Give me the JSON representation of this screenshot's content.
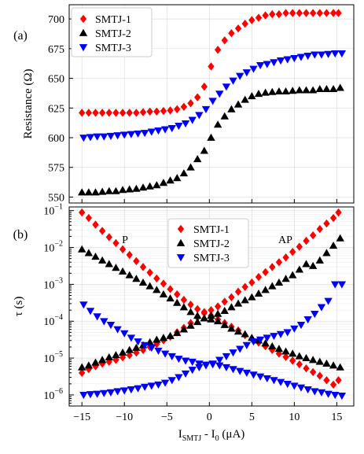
{
  "chart_data": [
    {
      "panel_label": "(a)",
      "type": "scatter",
      "ylabel": "Resistance (Ω)",
      "xlim": [
        -16.5,
        17
      ],
      "ylim": [
        545,
        712
      ],
      "yticks": [
        550,
        575,
        600,
        625,
        650,
        675,
        700
      ],
      "x_tick_labels": [],
      "legend_position": "top-left",
      "grid": true,
      "series": [
        {
          "name": "SMTJ-1",
          "marker": "diamond",
          "color": "#ff0000",
          "x": [
            -15,
            -14.2,
            -13.4,
            -12.6,
            -11.8,
            -11,
            -10.2,
            -9.4,
            -8.6,
            -7.8,
            -7,
            -6.2,
            -5.4,
            -4.6,
            -3.8,
            -3,
            -2.2,
            -1.4,
            -0.6,
            0.2,
            1,
            1.8,
            2.6,
            3.4,
            4.2,
            5,
            5.8,
            6.6,
            7.4,
            8.2,
            9,
            9.8,
            10.6,
            11.4,
            12.2,
            13,
            13.8,
            14.6,
            15.2
          ],
          "y": [
            621,
            621,
            621,
            621,
            621,
            621,
            621,
            621,
            621,
            621.5,
            622,
            622,
            622.5,
            623,
            624,
            626,
            629,
            634,
            643,
            660,
            674,
            682,
            688,
            692,
            696,
            699,
            701,
            703,
            704,
            704,
            705,
            705,
            705,
            705,
            705,
            705,
            705,
            705,
            705
          ]
        },
        {
          "name": "SMTJ-2",
          "marker": "triangle-up",
          "color": "#000000",
          "x": [
            -15,
            -14.2,
            -13.4,
            -12.6,
            -11.8,
            -11,
            -10.2,
            -9.4,
            -8.6,
            -7.8,
            -7,
            -6.2,
            -5.4,
            -4.6,
            -3.8,
            -3,
            -2.2,
            -1.4,
            -0.6,
            0.2,
            1,
            1.8,
            2.6,
            3.4,
            4.2,
            5,
            5.8,
            6.6,
            7.4,
            8.2,
            9,
            9.8,
            10.6,
            11.4,
            12.2,
            13,
            13.8,
            14.6,
            15.4
          ],
          "y": [
            554,
            554,
            554,
            554.5,
            555,
            555,
            556,
            556.5,
            557,
            558,
            559,
            560,
            562,
            564,
            566,
            570,
            575,
            582,
            589,
            600,
            611,
            618,
            624,
            628,
            632,
            635,
            637,
            638,
            638.5,
            639,
            639,
            639.5,
            640,
            640,
            640,
            641,
            641,
            641,
            642
          ]
        },
        {
          "name": "SMTJ-3",
          "marker": "triangle-down",
          "color": "#0000ff",
          "x": [
            -14.8,
            -14,
            -13.2,
            -12.4,
            -11.6,
            -10.8,
            -10,
            -9.2,
            -8.4,
            -7.6,
            -6.8,
            -6,
            -5.2,
            -4.4,
            -3.6,
            -2.8,
            -2,
            -1.2,
            -0.4,
            0.4,
            1.2,
            2,
            2.8,
            3.6,
            4.4,
            5.2,
            6,
            6.8,
            7.6,
            8.4,
            9.2,
            10,
            10.8,
            11.6,
            12.4,
            13.2,
            14,
            14.8,
            15.6
          ],
          "y": [
            600,
            600.5,
            601,
            601,
            601.5,
            602,
            602.5,
            603,
            603.5,
            604,
            605,
            606,
            607,
            608,
            610,
            612,
            615,
            619,
            624,
            631,
            637,
            643,
            648,
            652,
            655,
            658,
            661,
            662,
            663.5,
            665,
            666,
            667,
            668,
            669,
            670,
            670,
            670.5,
            671,
            671
          ]
        }
      ]
    },
    {
      "panel_label": "(b)",
      "type": "scatter",
      "xlabel_main": "I",
      "xlabel_sub1": "SMTJ",
      "xlabel_mid": " - I",
      "xlabel_sub2": "0",
      "xlabel_end": " (μA)",
      "ylabel": "τ (s)",
      "yscale": "log",
      "xlim": [
        -16.5,
        17
      ],
      "ylim_log10": [
        -6.3,
        -0.9
      ],
      "xticks": [
        -15,
        -10,
        -5,
        0,
        5,
        10,
        15
      ],
      "yticks_log10": [
        -6,
        -5,
        -4,
        -3,
        -2,
        -1
      ],
      "legend_position": "top-center",
      "grid": true,
      "annotations": [
        "P",
        "AP"
      ],
      "series": [
        {
          "name": "SMTJ-1",
          "marker": "diamond",
          "color": "#ff0000",
          "groups": [
            {
              "x": [
                -15,
                -14.2,
                -13.4,
                -12.6,
                -11.8,
                -11,
                -10.2,
                -9.4,
                -8.6,
                -7.8,
                -7,
                -6.2,
                -5.4,
                -4.6,
                -3.8,
                -3,
                -2.2,
                -1.4,
                -0.6,
                0.2,
                1,
                1.8,
                2.6,
                3.4,
                4.2,
                5,
                5.8,
                6.6,
                7.4,
                8.2,
                9,
                9.8,
                10.6,
                11.4,
                12.2,
                13,
                13.8,
                14.6,
                15.2
              ],
              "y_log10": [
                -1.05,
                -1.2,
                -1.38,
                -1.55,
                -1.72,
                -1.88,
                -2.05,
                -2.2,
                -2.37,
                -2.53,
                -2.68,
                -2.84,
                -2.98,
                -3.13,
                -3.27,
                -3.42,
                -3.55,
                -3.67,
                -3.75,
                -3.85,
                -3.95,
                -4.05,
                -4.15,
                -4.25,
                -4.38,
                -4.48,
                -4.58,
                -4.68,
                -4.78,
                -4.88,
                -4.97,
                -5.07,
                -5.17,
                -5.28,
                -5.38,
                -5.48,
                -5.6,
                -5.72,
                -5.6
              ]
            },
            {
              "x": [
                -15,
                -14.2,
                -13.4,
                -12.6,
                -11.8,
                -11,
                -10.2,
                -9.4,
                -8.6,
                -7.8,
                -7,
                -6.2,
                -5.4,
                -4.6,
                -3.8,
                -3,
                -2.2,
                -1.4,
                -0.6,
                0.2,
                1,
                1.8,
                2.6,
                3.4,
                4.2,
                5,
                5.8,
                6.6,
                7.4,
                8.2,
                9,
                9.8,
                10.6,
                11.4,
                12.2,
                13,
                13.8,
                14.6,
                15.2
              ],
              "y_log10": [
                -5.4,
                -5.3,
                -5.22,
                -5.15,
                -5.1,
                -5.05,
                -4.98,
                -4.92,
                -4.85,
                -4.78,
                -4.7,
                -4.62,
                -4.52,
                -4.42,
                -4.3,
                -4.18,
                -4.05,
                -3.9,
                -3.78,
                -3.7,
                -3.6,
                -3.47,
                -3.35,
                -3.2,
                -3.07,
                -2.95,
                -2.8,
                -2.67,
                -2.53,
                -2.4,
                -2.27,
                -2.12,
                -1.98,
                -1.82,
                -1.67,
                -1.5,
                -1.35,
                -1.2,
                -1.05
              ]
            }
          ]
        },
        {
          "name": "SMTJ-2",
          "marker": "triangle-up",
          "color": "#000000",
          "groups": [
            {
              "x": [
                -15,
                -14.2,
                -13.4,
                -12.6,
                -11.8,
                -11,
                -10.2,
                -9.4,
                -8.6,
                -7.8,
                -7,
                -6.2,
                -5.4,
                -4.6,
                -3.8,
                -3,
                -2.2,
                -1.4,
                -0.6,
                0.2,
                1,
                1.8,
                2.6,
                3.4,
                4.2,
                5,
                5.8,
                6.6,
                7.4,
                8.2,
                9,
                9.8,
                10.6,
                11.4,
                12.2,
                13,
                13.8,
                14.6,
                15.4
              ],
              "y_log10": [
                -2.05,
                -2.15,
                -2.25,
                -2.35,
                -2.45,
                -2.55,
                -2.65,
                -2.75,
                -2.85,
                -2.95,
                -3.05,
                -3.15,
                -3.27,
                -3.38,
                -3.5,
                -3.62,
                -3.75,
                -3.85,
                -3.92,
                -3.95,
                -4,
                -4.1,
                -4.2,
                -4.28,
                -4.35,
                -4.45,
                -4.52,
                -4.6,
                -4.68,
                -4.75,
                -4.82,
                -4.88,
                -4.95,
                -5,
                -5.05,
                -5.1,
                -5.15,
                -5.2,
                -5.25
              ]
            },
            {
              "x": [
                -15,
                -14.2,
                -13.4,
                -12.6,
                -11.8,
                -11,
                -10.2,
                -9.4,
                -8.6,
                -7.8,
                -7,
                -6.2,
                -5.4,
                -4.6,
                -3.8,
                -3,
                -2.2,
                -1.4,
                -0.6,
                0.2,
                1,
                1.8,
                2.6,
                3.4,
                4.2,
                5,
                5.8,
                6.6,
                7.4,
                8.2,
                9,
                9.8,
                10.6,
                11.4,
                12.2,
                13,
                13.8,
                14.6,
                15.4
              ],
              "y_log10": [
                -5.25,
                -5.2,
                -5.12,
                -5.05,
                -4.98,
                -4.92,
                -4.85,
                -4.78,
                -4.72,
                -4.65,
                -4.57,
                -4.5,
                -4.45,
                -4.4,
                -4.32,
                -4.22,
                -4.12,
                -4.02,
                -3.92,
                -3.85,
                -3.8,
                -3.72,
                -3.62,
                -3.52,
                -3.43,
                -3.35,
                -3.25,
                -3.15,
                -3.05,
                -2.95,
                -2.85,
                -2.75,
                -2.6,
                -2.45,
                -2.5,
                -2.35,
                -2.15,
                -1.95,
                -1.75
              ]
            }
          ]
        },
        {
          "name": "SMTJ-3",
          "marker": "triangle-down",
          "color": "#0000ff",
          "groups": [
            {
              "x": [
                -14.8,
                -14,
                -13.2,
                -12.4,
                -11.6,
                -10.8,
                -10,
                -9.2,
                -8.4,
                -7.6,
                -6.8,
                -6,
                -5.2,
                -4.4,
                -3.6,
                -2.8,
                -2,
                -1.2,
                -0.4,
                0.4,
                1.2,
                2,
                2.8,
                3.6,
                4.4,
                5.2,
                6,
                6.8,
                7.6,
                8.4,
                9.2,
                10,
                10.8,
                11.6,
                12.4,
                13.2,
                14,
                14.8,
                15.6
              ],
              "y_log10": [
                -3.55,
                -3.72,
                -3.87,
                -4.0,
                -4.1,
                -4.22,
                -4.33,
                -4.45,
                -4.55,
                -4.65,
                -4.72,
                -4.8,
                -4.88,
                -4.95,
                -5.02,
                -5.07,
                -5.1,
                -5.15,
                -5.18,
                -5.17,
                -5.2,
                -5.25,
                -5.3,
                -5.35,
                -5.4,
                -5.45,
                -5.5,
                -5.55,
                -5.6,
                -5.65,
                -5.7,
                -5.75,
                -5.8,
                -5.85,
                -5.9,
                -5.93,
                -5.97,
                -6.0,
                -6.02
              ]
            },
            {
              "x": [
                -14.8,
                -14,
                -13.2,
                -12.4,
                -11.6,
                -10.8,
                -10,
                -9.2,
                -8.4,
                -7.6,
                -6.8,
                -6,
                -5.2,
                -4.4,
                -3.6,
                -2.8,
                -2,
                -1.2,
                -0.4,
                0.4,
                1.2,
                2,
                2.8,
                3.6,
                4.4,
                5.2,
                6,
                6.8,
                7.6,
                8.4,
                9.2,
                10,
                10.8,
                11.6,
                12.4,
                13.2,
                14,
                14.8,
                15.6
              ],
              "y_log10": [
                -6.0,
                -5.98,
                -5.97,
                -5.95,
                -5.93,
                -5.9,
                -5.88,
                -5.85,
                -5.82,
                -5.78,
                -5.75,
                -5.72,
                -5.67,
                -5.6,
                -5.52,
                -5.42,
                -5.32,
                -5.25,
                -5.2,
                -5.15,
                -5.05,
                -4.95,
                -4.85,
                -4.75,
                -4.65,
                -4.55,
                -4.5,
                -4.45,
                -4.4,
                -4.35,
                -4.3,
                -4.2,
                -4.1,
                -3.95,
                -3.8,
                -3.62,
                -3.45,
                -3.0,
                -3.0
              ]
            }
          ]
        }
      ]
    }
  ]
}
